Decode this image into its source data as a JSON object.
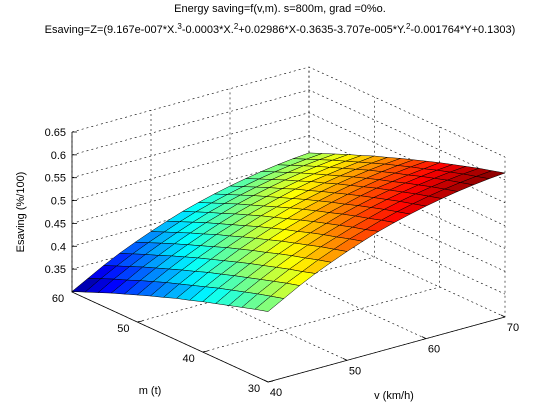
{
  "chart_data": {
    "type": "surface",
    "title": "Energy saving=f(v,m). s=800m, grad =0%o.",
    "subtitle": [
      "Esaving=Z=(9.167e-007*X.",
      "3",
      "-0.0003*X.",
      "2",
      "+0.02986*X-0.3635-3.707e-005*Y.",
      "2",
      "-0.001764*Y+0.1303)"
    ],
    "xlabel": "v (km/h)",
    "ylabel": "m (t)",
    "zlabel": "Esaving (%/100)",
    "x": [
      40,
      42,
      44,
      46,
      48,
      50,
      52,
      54,
      56,
      58,
      60,
      62,
      64,
      66,
      68,
      70
    ],
    "y": [
      30,
      32,
      34,
      36,
      38,
      40,
      42,
      44,
      46,
      48,
      50,
      52,
      54,
      56,
      58,
      60
    ],
    "z": [
      [
        0.454,
        0.473,
        0.492,
        0.509,
        0.524,
        0.538,
        0.551,
        0.563,
        0.573,
        0.582,
        0.59,
        0.597,
        0.603,
        0.608,
        0.612,
        0.615
      ],
      [
        0.446,
        0.465,
        0.484,
        0.5,
        0.516,
        0.53,
        0.543,
        0.554,
        0.565,
        0.574,
        0.582,
        0.589,
        0.595,
        0.6,
        0.604,
        0.607
      ],
      [
        0.437,
        0.457,
        0.475,
        0.492,
        0.507,
        0.522,
        0.534,
        0.546,
        0.556,
        0.566,
        0.574,
        0.581,
        0.587,
        0.592,
        0.596,
        0.599
      ],
      [
        0.428,
        0.448,
        0.466,
        0.483,
        0.499,
        0.513,
        0.526,
        0.537,
        0.548,
        0.557,
        0.565,
        0.572,
        0.578,
        0.583,
        0.587,
        0.59
      ],
      [
        0.419,
        0.439,
        0.457,
        0.474,
        0.49,
        0.504,
        0.517,
        0.528,
        0.539,
        0.548,
        0.556,
        0.563,
        0.569,
        0.574,
        0.578,
        0.581
      ],
      [
        0.41,
        0.43,
        0.448,
        0.465,
        0.48,
        0.495,
        0.507,
        0.519,
        0.529,
        0.538,
        0.547,
        0.554,
        0.559,
        0.564,
        0.568,
        0.572
      ],
      [
        0.4,
        0.42,
        0.438,
        0.455,
        0.471,
        0.485,
        0.498,
        0.509,
        0.52,
        0.529,
        0.537,
        0.544,
        0.55,
        0.555,
        0.559,
        0.562
      ],
      [
        0.391,
        0.41,
        0.429,
        0.445,
        0.461,
        0.475,
        0.488,
        0.499,
        0.51,
        0.519,
        0.527,
        0.534,
        0.54,
        0.545,
        0.549,
        0.552
      ],
      [
        0.38,
        0.4,
        0.418,
        0.435,
        0.451,
        0.465,
        0.478,
        0.489,
        0.5,
        0.509,
        0.517,
        0.524,
        0.53,
        0.535,
        0.539,
        0.542
      ],
      [
        0.37,
        0.39,
        0.408,
        0.425,
        0.44,
        0.454,
        0.467,
        0.479,
        0.489,
        0.498,
        0.506,
        0.513,
        0.519,
        0.524,
        0.528,
        0.531
      ],
      [
        0.359,
        0.379,
        0.397,
        0.414,
        0.429,
        0.444,
        0.456,
        0.468,
        0.478,
        0.487,
        0.496,
        0.503,
        0.508,
        0.513,
        0.517,
        0.521
      ],
      [
        0.348,
        0.368,
        0.386,
        0.403,
        0.418,
        0.432,
        0.445,
        0.457,
        0.467,
        0.476,
        0.484,
        0.491,
        0.497,
        0.502,
        0.506,
        0.509
      ],
      [
        0.337,
        0.356,
        0.375,
        0.391,
        0.407,
        0.421,
        0.434,
        0.445,
        0.456,
        0.465,
        0.473,
        0.48,
        0.486,
        0.491,
        0.495,
        0.498
      ],
      [
        0.325,
        0.345,
        0.363,
        0.38,
        0.395,
        0.409,
        0.422,
        0.434,
        0.444,
        0.453,
        0.461,
        0.468,
        0.474,
        0.479,
        0.483,
        0.486
      ],
      [
        0.313,
        0.333,
        0.351,
        0.368,
        0.383,
        0.397,
        0.41,
        0.422,
        0.432,
        0.441,
        0.449,
        0.456,
        0.462,
        0.467,
        0.471,
        0.474
      ],
      [
        0.301,
        0.32,
        0.339,
        0.356,
        0.371,
        0.385,
        0.398,
        0.41,
        0.42,
        0.429,
        0.437,
        0.444,
        0.45,
        0.455,
        0.459,
        0.462
      ]
    ],
    "xlim": [
      40,
      70
    ],
    "xticks": [
      40,
      50,
      60,
      70
    ],
    "ylim": [
      30,
      60
    ],
    "yticks": [
      30,
      40,
      50,
      60
    ],
    "zlim": [
      0.3,
      0.65
    ],
    "zticks": [
      0.35,
      0.4,
      0.45,
      0.5,
      0.55,
      0.6,
      0.65
    ],
    "grid": true,
    "colormap": "jet",
    "edgecolor": "#000000"
  }
}
